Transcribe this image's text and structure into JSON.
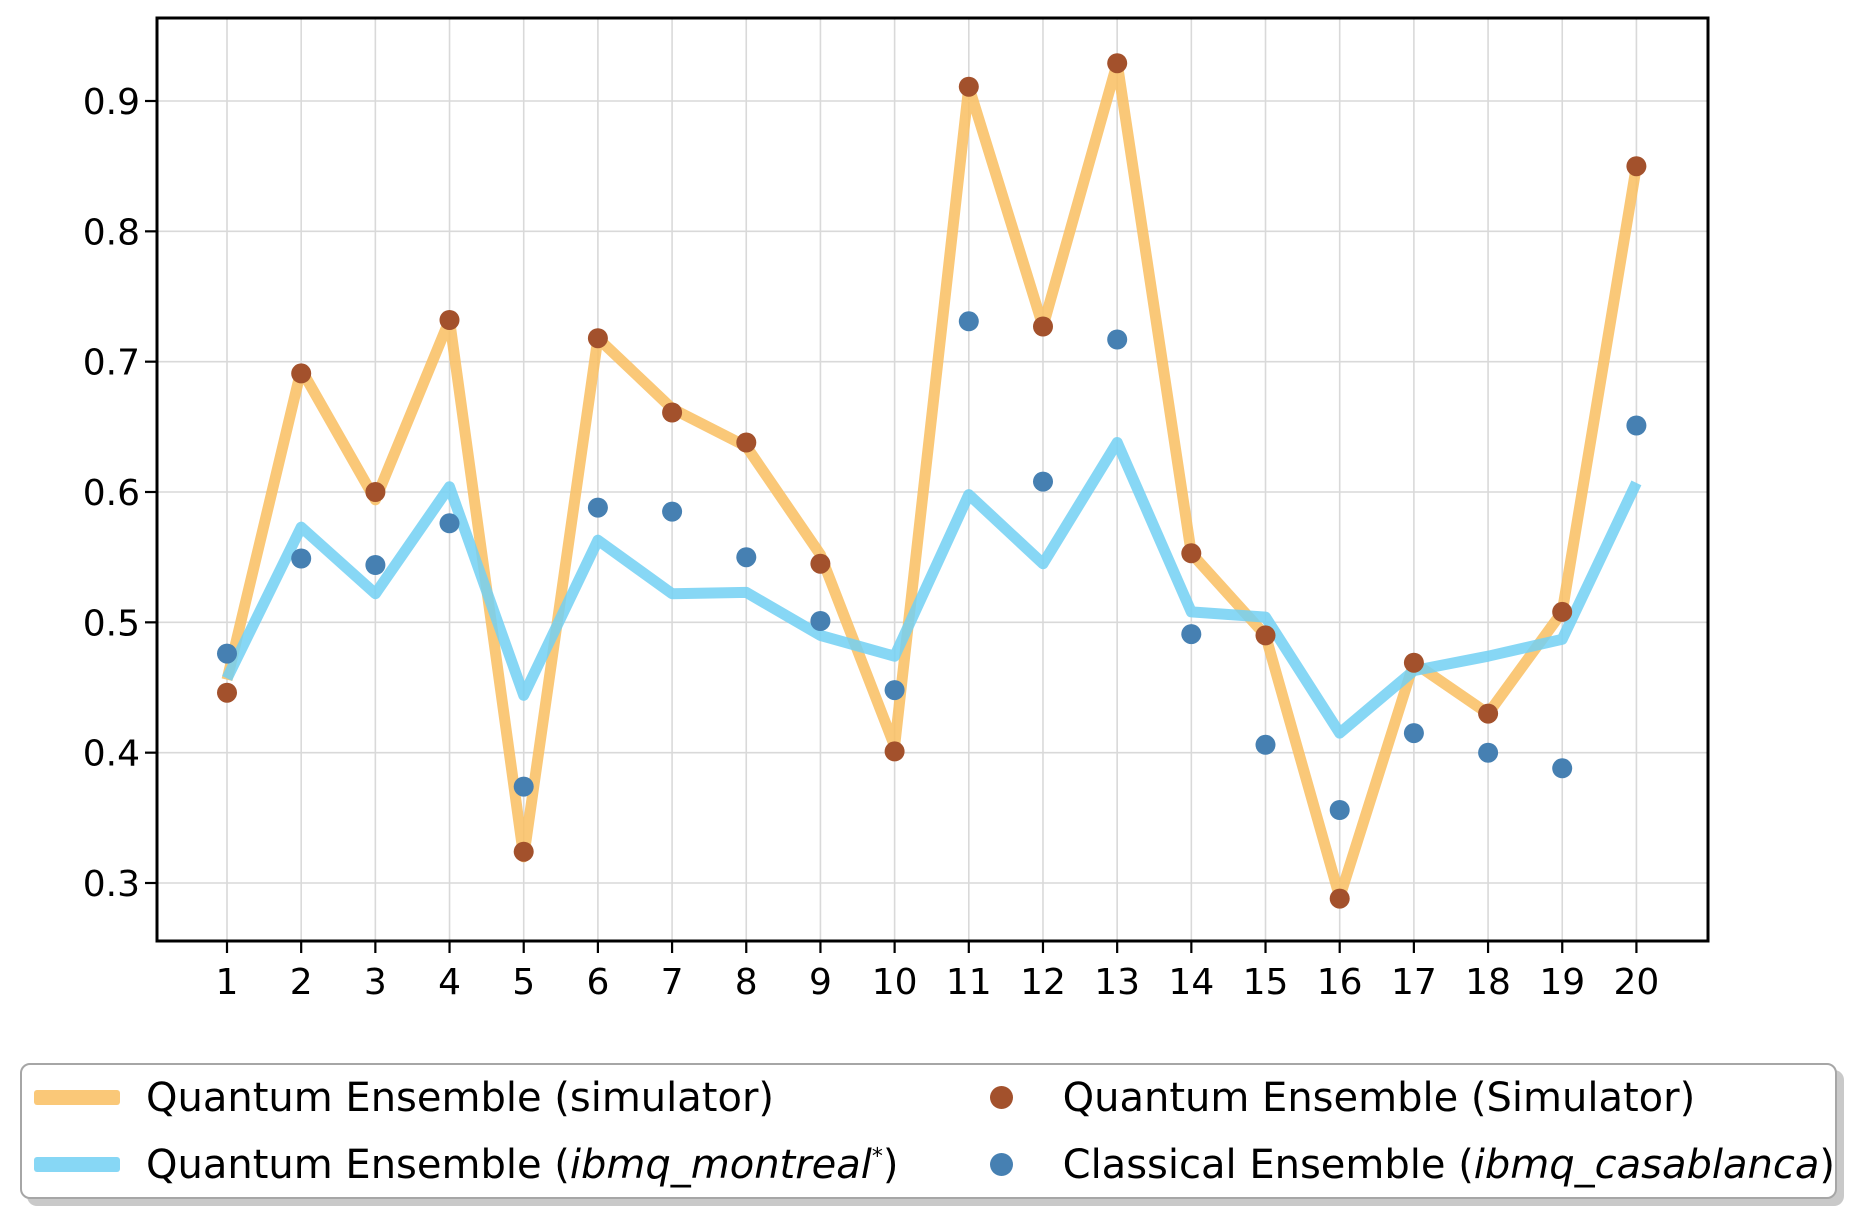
{
  "chart_data": {
    "type": "line",
    "title": "",
    "xlabel": "",
    "ylabel": "",
    "grid": true,
    "legend_position": "below",
    "xlim": [
      0.06,
      20.96
    ],
    "ylim": [
      0.256,
      0.964
    ],
    "x": [
      1,
      2,
      3,
      4,
      5,
      6,
      7,
      8,
      9,
      10,
      11,
      12,
      13,
      14,
      15,
      16,
      17,
      18,
      19,
      20
    ],
    "x_ticks": [
      {
        "v": 1,
        "label": "1"
      },
      {
        "v": 2,
        "label": "2"
      },
      {
        "v": 3,
        "label": "3"
      },
      {
        "v": 4,
        "label": "4"
      },
      {
        "v": 5,
        "label": "5"
      },
      {
        "v": 6,
        "label": "6"
      },
      {
        "v": 7,
        "label": "7"
      },
      {
        "v": 8,
        "label": "8"
      },
      {
        "v": 9,
        "label": "9"
      },
      {
        "v": 10,
        "label": "10"
      },
      {
        "v": 11,
        "label": "11"
      },
      {
        "v": 12,
        "label": "12"
      },
      {
        "v": 13,
        "label": "13"
      },
      {
        "v": 14,
        "label": "14"
      },
      {
        "v": 15,
        "label": "15"
      },
      {
        "v": 16,
        "label": "16"
      },
      {
        "v": 17,
        "label": "17"
      },
      {
        "v": 18,
        "label": "18"
      },
      {
        "v": 19,
        "label": "19"
      },
      {
        "v": 20,
        "label": "20"
      }
    ],
    "y_ticks": [
      {
        "v": 0.9,
        "label": "0.9"
      },
      {
        "v": 0.8,
        "label": "0.8"
      },
      {
        "v": 0.7,
        "label": "0.7"
      },
      {
        "v": 0.6,
        "label": "0.6"
      },
      {
        "v": 0.5,
        "label": "0.5"
      },
      {
        "v": 0.4,
        "label": "0.4"
      },
      {
        "v": 0.3,
        "label": "0.3"
      }
    ],
    "series": [
      {
        "id": "quantum-ensemble-simulator-line",
        "name": "Quantum Ensemble (simulator)",
        "type": "line",
        "color": "#F9BE60",
        "opacity": 0.85,
        "width": 11,
        "values": [
          0.456,
          0.694,
          0.594,
          0.732,
          0.32,
          0.718,
          0.664,
          0.635,
          0.552,
          0.405,
          0.911,
          0.727,
          0.929,
          0.553,
          0.49,
          0.289,
          0.469,
          0.43,
          0.508,
          0.85
        ]
      },
      {
        "id": "quantum-ensemble-ibmq-montreal-line",
        "name": "Quantum Ensemble (ibmq_montreal*)",
        "type": "line",
        "color": "#72D0F3",
        "opacity": 0.85,
        "width": 11,
        "values": [
          0.457,
          0.573,
          0.522,
          0.604,
          0.444,
          0.563,
          0.522,
          0.523,
          0.49,
          0.474,
          0.598,
          0.545,
          0.638,
          0.508,
          0.504,
          0.415,
          0.463,
          0.474,
          0.487,
          0.607
        ]
      },
      {
        "id": "quantum-ensemble-simulator-dots",
        "name": "Quantum Ensemble (Simulator)",
        "type": "scatter",
        "color": "#A3512C",
        "radius": 10,
        "values": [
          0.446,
          0.691,
          0.6,
          0.732,
          0.324,
          0.718,
          0.661,
          0.638,
          0.545,
          0.401,
          0.911,
          0.727,
          0.929,
          0.553,
          0.49,
          0.288,
          0.469,
          0.43,
          0.508,
          0.85
        ]
      },
      {
        "id": "classical-ensemble-ibmq-casablanca-dots",
        "name": "Classical Ensemble (ibmq_casablanca)",
        "type": "scatter",
        "color": "#4680B2",
        "radius": 10,
        "values": [
          0.476,
          0.549,
          0.544,
          0.576,
          0.374,
          0.588,
          0.585,
          0.55,
          0.501,
          0.448,
          0.731,
          0.608,
          0.717,
          0.491,
          0.406,
          0.356,
          0.415,
          0.4,
          0.388,
          0.651
        ]
      }
    ]
  },
  "style": {
    "grid_color": "#D9D9D9",
    "spine_color": "#000000",
    "background": "#ffffff",
    "legend_border": "#a6a6a6",
    "legend_shadow": "#c9c9c9"
  },
  "legend": {
    "columns": [
      [
        {
          "id": "legend-quantum-ensemble-simulator-line",
          "swatch": "line",
          "color": "#FAC878",
          "runs": [
            {
              "t": "Quantum Ensemble (simulator)"
            }
          ]
        },
        {
          "id": "legend-quantum-ensemble-ibmq-montreal-line",
          "swatch": "line",
          "color": "#87D7F5",
          "runs": [
            {
              "t": "Quantum Ensemble ("
            },
            {
              "t": "ibmq_montreal",
              "i": true
            },
            {
              "t": "*",
              "sup": true
            },
            {
              "t": ")"
            }
          ]
        }
      ],
      [
        {
          "id": "legend-quantum-ensemble-simulator-dots",
          "swatch": "dot",
          "color": "#A3512C",
          "runs": [
            {
              "t": "Quantum Ensemble (Simulator)"
            }
          ]
        },
        {
          "id": "legend-classical-ensemble-ibmq-casablanca-dots",
          "swatch": "dot",
          "color": "#4680B2",
          "runs": [
            {
              "t": "Classical Ensemble ("
            },
            {
              "t": "ibmq_casablanca",
              "i": true
            },
            {
              "t": ")"
            }
          ]
        }
      ]
    ]
  }
}
